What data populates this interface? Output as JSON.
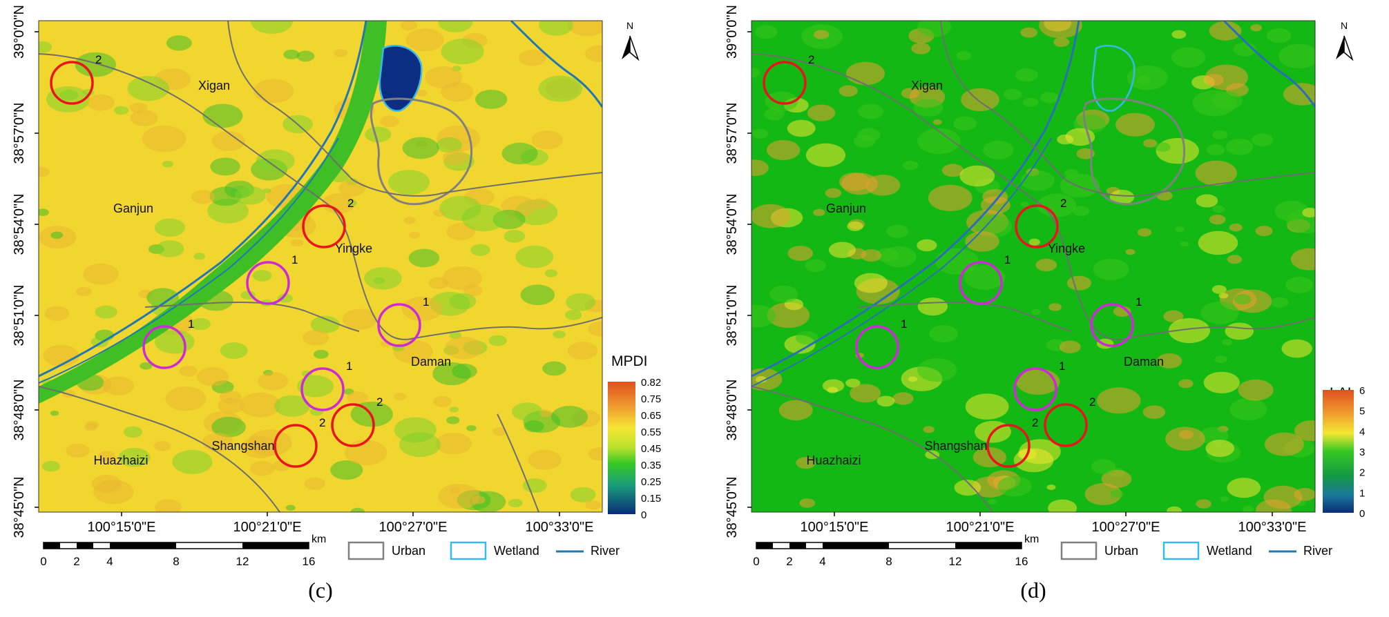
{
  "panels": [
    {
      "id": "c",
      "panel_label": "(c)",
      "variable": "MPDI",
      "legend_ticks": [
        "0.82",
        "0.75",
        "0.65",
        "0.55",
        "0.45",
        "0.35",
        "0.25",
        "0.15",
        "0"
      ],
      "colors": {
        "base": "#f2d630",
        "base2": "#e9b830",
        "veg": "#3fbf25",
        "veg2": "#7fd12c",
        "water": "#0b3d8c"
      }
    },
    {
      "id": "d",
      "panel_label": "(d)",
      "variable": "LAI",
      "legend_ticks": [
        "6",
        "5",
        "4",
        "3",
        "2",
        "1",
        "0"
      ],
      "colors": {
        "base": "#14b814",
        "base2": "#38c419",
        "veg": "#f0e830",
        "veg2": "#e8a030",
        "water": "#2a6fb5"
      }
    }
  ],
  "lat_labels": [
    "39°0'0\"N",
    "38°57'0\"N",
    "38°54'0\"N",
    "38°51'0\"N",
    "38°48'0\"N",
    "38°45'0\"N"
  ],
  "lon_labels": [
    "100°15'0\"E",
    "100°21'0\"E",
    "100°27'0\"E",
    "100°33'0\"E"
  ],
  "place_names": [
    "Xigan",
    "Ganjun",
    "Yingke",
    "Daman",
    "Shangshan",
    "Huazhaizi"
  ],
  "site_markers": [
    {
      "type": "magenta",
      "label": "1"
    },
    {
      "type": "magenta",
      "label": "1"
    },
    {
      "type": "magenta",
      "label": "1"
    },
    {
      "type": "magenta",
      "label": "1"
    },
    {
      "type": "red",
      "label": "2"
    },
    {
      "type": "red",
      "label": "2"
    },
    {
      "type": "red",
      "label": "2"
    },
    {
      "type": "red",
      "label": "2"
    }
  ],
  "north_arrow": {
    "label": "N",
    "icon": "north-arrow-icon"
  },
  "scale_bar": {
    "unit": "km",
    "ticks": [
      "0",
      "2",
      "4",
      "8",
      "12",
      "16"
    ]
  },
  "legend": {
    "urban": {
      "label": "Urban",
      "color": "#808080"
    },
    "wetland": {
      "label": "Wetland",
      "color": "#33bbee"
    },
    "river": {
      "label": "River",
      "color": "#1f77b4"
    }
  },
  "styles": {
    "boundary": "#6e6e6e",
    "red_circle": "#e8141e",
    "magenta_circle": "#cc2ad6"
  }
}
